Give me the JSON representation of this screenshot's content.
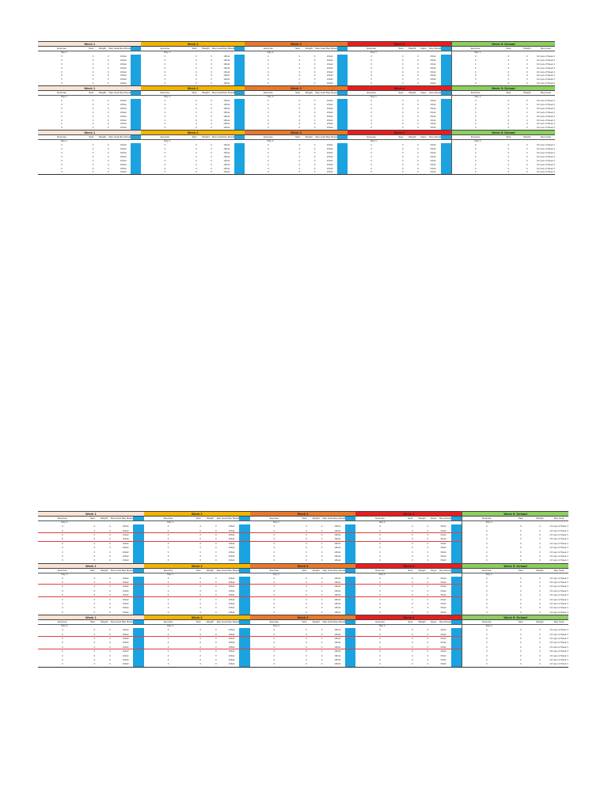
{
  "colors": {
    "week1": "#fbe3d4",
    "week2": "#f3b400",
    "week3": "#e8782a",
    "week4": "#e81e1e",
    "week5": "#8ccf5c",
    "blue_cell": "#1aa3e0"
  },
  "weeks": [
    {
      "title": "Week 1",
      "color": "#fbe3d4",
      "headers": [
        "Exercise",
        "Sets",
        "Weight",
        "Rep Goal",
        "Rep Results",
        ""
      ],
      "cells": [
        "0",
        "0",
        "0",
        "10Fail"
      ]
    },
    {
      "title": "Week 2",
      "color": "#f3b400",
      "headers": [
        "Exercise",
        "Sets",
        "Weight",
        "Rep Goal",
        "Rep Results",
        ""
      ],
      "cells": [
        "0",
        "0",
        "0",
        "10Fail"
      ]
    },
    {
      "title": "Week 3",
      "color": "#e8782a",
      "headers": [
        "Exercise",
        "Sets",
        "Weight",
        "Rep Goal",
        "Rep Results",
        ""
      ],
      "cells": [
        "0",
        "0",
        "0",
        "10Fail"
      ]
    },
    {
      "title": "Week 4",
      "color": "#e81e1e",
      "headers": [
        "Exercise",
        "Sets",
        "Weight",
        "Reps",
        "Rep Results",
        ""
      ],
      "cells": [
        "0",
        "0",
        "0",
        "6/Fail"
      ]
    },
    {
      "title": "Week 5: Deload",
      "color": "#8ccf5c",
      "headers": [
        "Exercise",
        "Sets",
        "Weight",
        "Rep Goal"
      ],
      "cells": [
        "0",
        "0",
        "0",
        "1/2 reps of Week 4"
      ]
    }
  ],
  "day_label": "Day 1:"
}
